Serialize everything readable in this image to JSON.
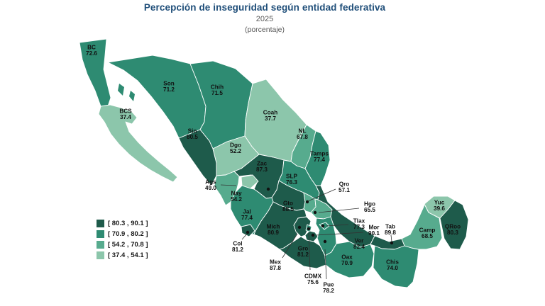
{
  "header": {
    "title": "Percepción de inseguridad según entidad federativa",
    "subtitle": "2025",
    "unit": "(porcentaje)"
  },
  "chart_data": {
    "type": "choropleth",
    "title": "Percepción de inseguridad según entidad federativa",
    "subtitle": "2025",
    "unit": "(porcentaje)",
    "region": "Mexico - entidades federativas",
    "bins": [
      {
        "label": "[ 80.3 , 90.1 ]",
        "range": [
          80.3,
          90.1
        ],
        "color": "#1e5b4b"
      },
      {
        "label": "[ 70.9 , 80.2 ]",
        "range": [
          70.9,
          80.2
        ],
        "color": "#2e8b72"
      },
      {
        "label": "[ 54.2 , 70.8 ]",
        "range": [
          54.2,
          70.8
        ],
        "color": "#57ab8e"
      },
      {
        "label": "[ 37.4 , 54.1 ]",
        "range": [
          37.4,
          54.1
        ],
        "color": "#8cc6ab"
      }
    ],
    "states": [
      {
        "abbr": "BC",
        "value": 72.6,
        "bin": 1
      },
      {
        "abbr": "BCS",
        "value": 37.4,
        "bin": 3
      },
      {
        "abbr": "Son",
        "value": 71.2,
        "bin": 1
      },
      {
        "abbr": "Chih",
        "value": 71.5,
        "bin": 1
      },
      {
        "abbr": "Coah",
        "value": 37.7,
        "bin": 3
      },
      {
        "abbr": "NL",
        "value": 67.8,
        "bin": 2
      },
      {
        "abbr": "Tamps",
        "value": 77.4,
        "bin": 1
      },
      {
        "abbr": "Sin",
        "value": 80.5,
        "bin": 0
      },
      {
        "abbr": "Dgo",
        "value": 52.2,
        "bin": 3
      },
      {
        "abbr": "Zac",
        "value": 87.3,
        "bin": 0
      },
      {
        "abbr": "SLP",
        "value": 76.3,
        "bin": 1
      },
      {
        "abbr": "Ags",
        "value": 49.0,
        "bin": 3
      },
      {
        "abbr": "Nay",
        "value": 54.2,
        "bin": 2
      },
      {
        "abbr": "Jal",
        "value": 77.4,
        "bin": 1
      },
      {
        "abbr": "Gto",
        "value": 88.5,
        "bin": 0
      },
      {
        "abbr": "Qro",
        "value": 57.1,
        "bin": 2
      },
      {
        "abbr": "Hgo",
        "value": 65.5,
        "bin": 2
      },
      {
        "abbr": "Mich",
        "value": 80.9,
        "bin": 0
      },
      {
        "abbr": "Ver",
        "value": 82.4,
        "bin": 0
      },
      {
        "abbr": "Pue",
        "value": 78.2,
        "bin": 1
      },
      {
        "abbr": "Mex",
        "value": 87.8,
        "bin": 0
      },
      {
        "abbr": "CDMX",
        "value": 75.6,
        "bin": 1
      },
      {
        "abbr": "Mor",
        "value": 90.1,
        "bin": 0
      },
      {
        "abbr": "Tlax",
        "value": 77.3,
        "bin": 1
      },
      {
        "abbr": "Col",
        "value": 81.2,
        "bin": 0
      },
      {
        "abbr": "Gro",
        "value": 81.2,
        "bin": 0
      },
      {
        "abbr": "Oax",
        "value": 70.9,
        "bin": 1
      },
      {
        "abbr": "Tab",
        "value": 89.8,
        "bin": 0
      },
      {
        "abbr": "Chis",
        "value": 74.0,
        "bin": 1
      },
      {
        "abbr": "Camp",
        "value": 68.5,
        "bin": 2
      },
      {
        "abbr": "Yuc",
        "value": 39.6,
        "bin": 3
      },
      {
        "abbr": "QRoo",
        "value": 80.3,
        "bin": 0
      }
    ]
  }
}
